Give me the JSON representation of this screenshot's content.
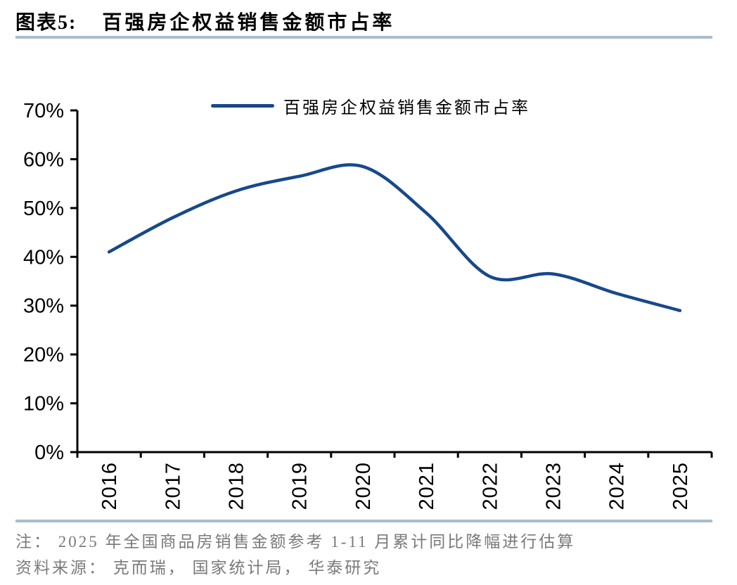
{
  "header": {
    "figure_label": "图表5:",
    "figure_title": "百强房企权益销售金额市占率"
  },
  "legend": {
    "label": "百强房企权益销售金额市占率"
  },
  "chart_data": {
    "type": "line",
    "title": "百强房企权益销售金额市占率",
    "x": [
      "2016",
      "2017",
      "2018",
      "2019",
      "2020",
      "2021",
      "2022",
      "2023",
      "2024",
      "2025"
    ],
    "series": [
      {
        "name": "百强房企权益销售金额市占率",
        "values": [
          41,
          48,
          53.5,
          56.5,
          58.5,
          49,
          36,
          36.5,
          32.5,
          29
        ],
        "color": "#17498a"
      }
    ],
    "unit": "%",
    "ylim": [
      0,
      70
    ],
    "ytick_step": 10,
    "ytick_labels": [
      "0%",
      "10%",
      "20%",
      "30%",
      "40%",
      "50%",
      "60%",
      "70%"
    ],
    "grid": false,
    "smooth": true,
    "legend_position": "top-center",
    "x_label_rotation": -90
  },
  "footer": {
    "note": "注： 2025 年全国商品房销售金额参考 1-11 月累计同比降幅进行估算",
    "source": "资料来源： 克而瑞， 国家统计局， 华泰研究"
  },
  "colors": {
    "line": "#17498a",
    "divider": "#a9bcca",
    "axis": "#000000",
    "note_text": "#7a7a7a"
  }
}
